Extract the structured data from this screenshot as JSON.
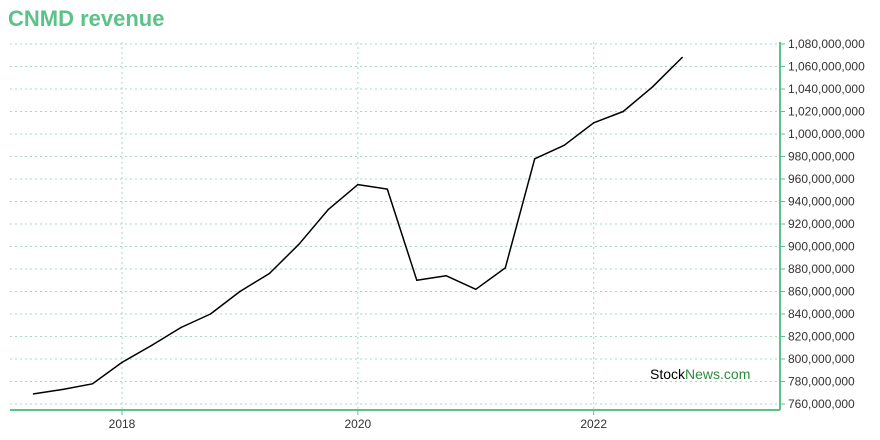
{
  "title": "CNMD revenue",
  "watermark": {
    "part1": "Stock",
    "part2": "News",
    "part3": ".com"
  },
  "colors": {
    "title": "#5cc28a",
    "axis": "#5cc28a",
    "grid": "#a8d8c0",
    "line": "#000000",
    "watermark_green": "#2e8b3e"
  },
  "chart_data": {
    "type": "line",
    "title": "CNMD revenue",
    "xlabel": "",
    "ylabel": "",
    "xlim": [
      2017.05,
      2023.58
    ],
    "ylim": [
      760000000,
      1080000000
    ],
    "x_ticks": [
      2018,
      2020,
      2022
    ],
    "x_tick_labels": [
      "2018",
      "2020",
      "2022"
    ],
    "y_ticks": [
      760000000,
      780000000,
      800000000,
      820000000,
      840000000,
      860000000,
      880000000,
      900000000,
      920000000,
      940000000,
      960000000,
      980000000,
      1000000000,
      1020000000,
      1040000000,
      1060000000,
      1080000000
    ],
    "y_tick_labels": [
      "760,000,000",
      "780,000,000",
      "800,000,000",
      "820,000,000",
      "840,000,000",
      "860,000,000",
      "880,000,000",
      "900,000,000",
      "920,000,000",
      "940,000,000",
      "960,000,000",
      "980,000,000",
      "1,000,000,000",
      "1,020,000,000",
      "1,040,000,000",
      "1,060,000,000",
      "1,080,000,000"
    ],
    "grid": true,
    "y_axis_side": "right",
    "series": [
      {
        "x": [
          2017.25,
          2017.5,
          2017.75,
          2018.0,
          2018.25,
          2018.5,
          2018.75,
          2019.0,
          2019.25,
          2019.5,
          2019.75,
          2020.0,
          2020.25,
          2020.5,
          2020.75,
          2021.0,
          2021.25,
          2021.5,
          2021.75,
          2022.0,
          2022.25,
          2022.5,
          2022.75
        ],
        "values": [
          769000000,
          773000000,
          778000000,
          797000000,
          812000000,
          828000000,
          840000000,
          860000000,
          876000000,
          902000000,
          933000000,
          955000000,
          951000000,
          870000000,
          874000000,
          862000000,
          881000000,
          978000000,
          990000000,
          1010000000,
          1020000000,
          1042000000,
          1068000000
        ]
      }
    ]
  }
}
